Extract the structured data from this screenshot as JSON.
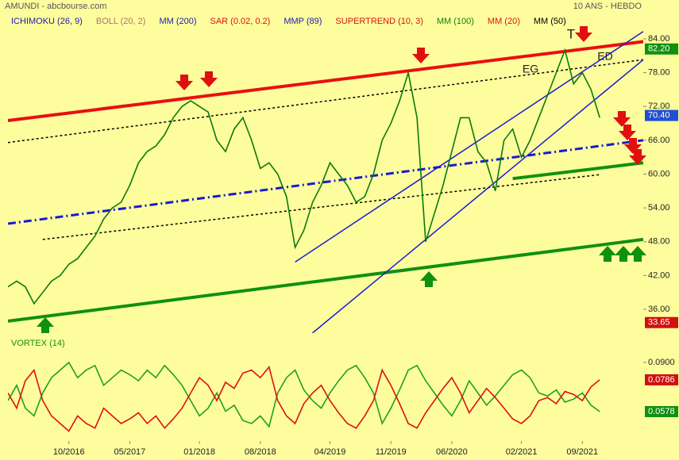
{
  "header": {
    "title": "AMUNDI - abcbourse.com",
    "period": "10 ANS - HEBDO"
  },
  "chart_data": [
    {
      "type": "line",
      "indicators": [
        {
          "name": "ICHIMOKU (26, 9)",
          "color": "#1a1ab0"
        },
        {
          "name": "BOLL (20, 2)",
          "color": "#b07070"
        },
        {
          "name": "MM (200)",
          "color": "#1a1ab0"
        },
        {
          "name": "SAR (0.02, 0.2)",
          "color": "#e01010"
        },
        {
          "name": "MMP (89)",
          "color": "#1a1ab0"
        },
        {
          "name": "SUPERTREND (10, 3)",
          "color": "#e01010"
        },
        {
          "name": "MM (100)",
          "color": "#108010"
        },
        {
          "name": "MM (20)",
          "color": "#e01010"
        },
        {
          "name": "MM (50)",
          "color": "#000000"
        }
      ],
      "annotations": [
        "T",
        "EG",
        "ED"
      ],
      "x": [
        "03/2016",
        "04/2016",
        "05/2016",
        "06/2016",
        "07/2016",
        "08/2016",
        "09/2016",
        "10/2016",
        "11/2016",
        "12/2016",
        "01/2017",
        "02/2017",
        "03/2017",
        "04/2017",
        "05/2017",
        "06/2017",
        "07/2017",
        "08/2017",
        "09/2017",
        "10/2017",
        "11/2017",
        "12/2017",
        "01/2018",
        "02/2018",
        "03/2018",
        "04/2018",
        "05/2018",
        "06/2018",
        "07/2018",
        "08/2018",
        "09/2018",
        "10/2018",
        "11/2018",
        "12/2018",
        "01/2019",
        "02/2019",
        "03/2019",
        "04/2019",
        "05/2019",
        "06/2019",
        "07/2019",
        "08/2019",
        "09/2019",
        "10/2019",
        "11/2019",
        "12/2019",
        "01/2020",
        "02/2020",
        "03/2020",
        "04/2020",
        "05/2020",
        "06/2020",
        "07/2020",
        "08/2020",
        "09/2020",
        "10/2020",
        "11/2020",
        "12/2020",
        "01/2021",
        "02/2021",
        "03/2021",
        "04/2021",
        "05/2021",
        "06/2021",
        "07/2021",
        "08/2021",
        "09/2021",
        "10/2021",
        "11/2021"
      ],
      "series": [
        {
          "color": "#0a7a0a",
          "values": [
            40,
            41,
            40,
            37,
            39,
            41,
            42,
            44,
            45,
            47,
            49,
            52,
            54,
            55,
            58,
            62,
            64,
            65,
            67,
            70,
            72,
            73,
            72,
            71,
            66,
            64,
            68,
            70,
            66,
            61,
            62,
            60,
            56,
            47,
            50,
            55,
            58,
            62,
            60,
            58,
            55,
            56,
            60,
            66,
            69,
            73,
            78,
            70,
            48,
            53,
            58,
            64,
            70,
            70,
            64,
            62,
            57,
            66,
            68,
            63,
            66,
            70,
            74,
            78,
            82,
            76,
            78,
            75,
            70
          ]
        }
      ],
      "lines": [
        {
          "x": [
            "03/2016",
            "04/2022"
          ],
          "y": [
            69.5,
            83.5
          ],
          "color": "#e81010",
          "style": "solid",
          "width": 4
        },
        {
          "x": [
            "03/2016",
            "04/2022"
          ],
          "y": [
            33.9,
            48.4
          ],
          "color": "#109010",
          "style": "solid",
          "width": 4
        },
        {
          "x": [
            "01/2021",
            "04/2022"
          ],
          "y": [
            59.2,
            62.0
          ],
          "color": "#109010",
          "style": "solid",
          "width": 4
        },
        {
          "x": [
            "03/2016",
            "04/2022"
          ],
          "y": [
            51.2,
            66.0
          ],
          "color": "#1a1ad0",
          "style": "dashdot",
          "width": 3
        },
        {
          "x": [
            "03/2016",
            "04/2022"
          ],
          "y": [
            65.6,
            80.3
          ],
          "color": "#000000",
          "style": "dotted",
          "width": 1.5
        },
        {
          "x": [
            "07/2016",
            "11/2021"
          ],
          "y": [
            48.4,
            59.9
          ],
          "color": "#000000",
          "style": "dotted",
          "width": 1.5
        },
        {
          "x": [
            "12/2018",
            "04/2022"
          ],
          "y": [
            44.4,
            85.3
          ],
          "color": "#1a1ad0",
          "style": "solid",
          "width": 1.5
        },
        {
          "x": [
            "02/2019",
            "04/2022"
          ],
          "y": [
            31.8,
            80.3
          ],
          "color": "#1a1ad0",
          "style": "solid",
          "width": 1.5
        }
      ],
      "price_labels": [
        {
          "value": 82.2,
          "label": "82.20",
          "color": "#109010"
        },
        {
          "value": 70.4,
          "label": "70.40",
          "color": "#2050d0"
        },
        {
          "value": 33.65,
          "label": "33.65",
          "color": "#d01010"
        }
      ],
      "xlim": [
        "03/2016",
        "04/2022"
      ],
      "xticks": [
        "10/2016",
        "05/2017",
        "01/2018",
        "08/2018",
        "04/2019",
        "11/2019",
        "06/2020",
        "02/2021",
        "09/2021"
      ],
      "ylim": [
        31.78,
        88.36
      ],
      "yticks": [
        {
          "value": 36,
          "label": "36.00"
        },
        {
          "value": 42,
          "label": "42.00"
        },
        {
          "value": 48,
          "label": "48.00"
        },
        {
          "value": 54,
          "label": "54.00"
        },
        {
          "value": 60,
          "label": "60.00"
        },
        {
          "value": 66,
          "label": "66.00"
        },
        {
          "value": 72,
          "label": "72.00"
        },
        {
          "value": 78,
          "label": "78.00"
        },
        {
          "value": 84,
          "label": "84.00"
        }
      ]
    },
    {
      "type": "line",
      "title": "VORTEX (14)",
      "x": [
        "03/2016",
        "04/2016",
        "05/2016",
        "06/2016",
        "07/2016",
        "08/2016",
        "09/2016",
        "10/2016",
        "11/2016",
        "12/2016",
        "01/2017",
        "02/2017",
        "03/2017",
        "04/2017",
        "05/2017",
        "06/2017",
        "07/2017",
        "08/2017",
        "09/2017",
        "10/2017",
        "11/2017",
        "12/2017",
        "01/2018",
        "02/2018",
        "03/2018",
        "04/2018",
        "05/2018",
        "06/2018",
        "07/2018",
        "08/2018",
        "09/2018",
        "10/2018",
        "11/2018",
        "12/2018",
        "01/2019",
        "02/2019",
        "03/2019",
        "04/2019",
        "05/2019",
        "06/2019",
        "07/2019",
        "08/2019",
        "09/2019",
        "10/2019",
        "11/2019",
        "12/2019",
        "01/2020",
        "02/2020",
        "03/2020",
        "04/2020",
        "05/2020",
        "06/2020",
        "07/2020",
        "08/2020",
        "09/2020",
        "10/2020",
        "11/2020",
        "12/2020",
        "01/2021",
        "02/2021",
        "03/2021",
        "04/2021",
        "05/2021",
        "06/2021",
        "07/2021",
        "08/2021",
        "09/2021",
        "10/2021",
        "11/2021"
      ],
      "series": [
        {
          "color": "#20a020",
          "values": [
            0.065,
            0.075,
            0.06,
            0.055,
            0.07,
            0.08,
            0.085,
            0.09,
            0.08,
            0.085,
            0.088,
            0.075,
            0.08,
            0.085,
            0.082,
            0.078,
            0.085,
            0.08,
            0.088,
            0.082,
            0.075,
            0.065,
            0.055,
            0.06,
            0.07,
            0.058,
            0.062,
            0.052,
            0.05,
            0.055,
            0.048,
            0.07,
            0.08,
            0.085,
            0.072,
            0.065,
            0.06,
            0.07,
            0.078,
            0.085,
            0.088,
            0.08,
            0.07,
            0.05,
            0.06,
            0.072,
            0.085,
            0.088,
            0.078,
            0.07,
            0.062,
            0.055,
            0.065,
            0.078,
            0.07,
            0.062,
            0.068,
            0.075,
            0.082,
            0.085,
            0.08,
            0.07,
            0.068,
            0.072,
            0.064,
            0.066,
            0.07,
            0.062,
            0.0578
          ]
        },
        {
          "color": "#e01010",
          "values": [
            0.07,
            0.06,
            0.078,
            0.085,
            0.065,
            0.055,
            0.05,
            0.045,
            0.055,
            0.05,
            0.047,
            0.06,
            0.055,
            0.05,
            0.053,
            0.057,
            0.05,
            0.055,
            0.047,
            0.053,
            0.06,
            0.07,
            0.08,
            0.075,
            0.065,
            0.077,
            0.073,
            0.083,
            0.085,
            0.08,
            0.087,
            0.065,
            0.055,
            0.05,
            0.063,
            0.07,
            0.075,
            0.065,
            0.057,
            0.05,
            0.047,
            0.055,
            0.065,
            0.085,
            0.075,
            0.063,
            0.05,
            0.047,
            0.057,
            0.065,
            0.073,
            0.08,
            0.07,
            0.057,
            0.065,
            0.073,
            0.067,
            0.06,
            0.053,
            0.05,
            0.055,
            0.065,
            0.067,
            0.063,
            0.071,
            0.069,
            0.065,
            0.074,
            0.0786
          ]
        }
      ],
      "price_labels": [
        {
          "value": 0.0786,
          "label": "0.0786",
          "color": "#d01010"
        },
        {
          "value": 0.0578,
          "label": "0.0578",
          "color": "#109010"
        }
      ],
      "xlim": [
        "03/2016",
        "04/2022"
      ],
      "xticks": [
        "10/2016",
        "05/2017",
        "01/2018",
        "08/2018",
        "04/2019",
        "11/2019",
        "06/2020",
        "02/2021",
        "09/2021"
      ],
      "ylim": [
        0.0391,
        0.0988
      ],
      "yticks": [
        {
          "value": 0.09,
          "label": "0.0900"
        }
      ]
    }
  ]
}
